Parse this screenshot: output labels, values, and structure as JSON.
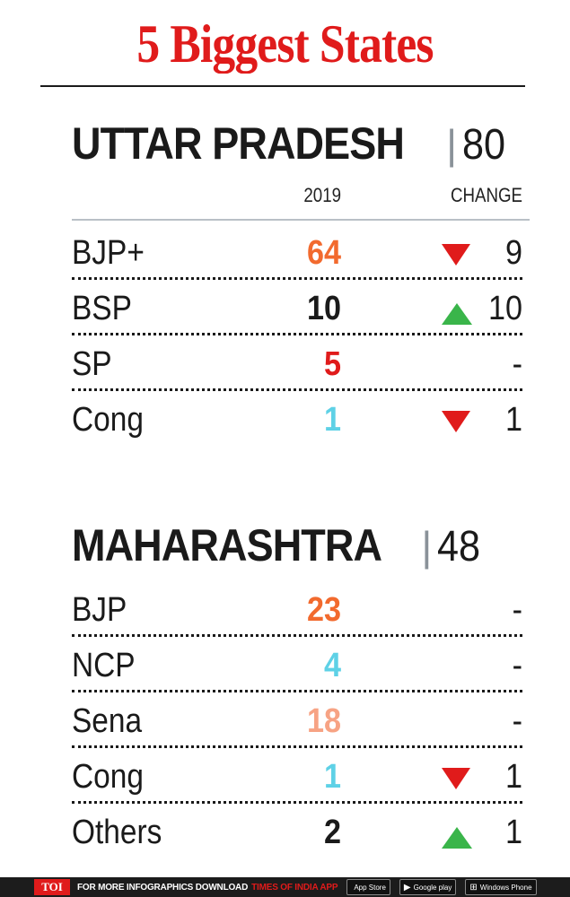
{
  "title": "5 Biggest States",
  "columns": {
    "year": "2019",
    "change": "CHANGE"
  },
  "colors": {
    "bjp": "#f26a2e",
    "sena": "#f7a384",
    "teal": "#5ed1e6",
    "red": "#e01b1b",
    "green": "#3ab54a",
    "dark": "#1a1a1a"
  },
  "chart_data": [
    {
      "type": "table",
      "title": "UTTAR PRADESH",
      "total_seats": "80",
      "columns": [
        "2019",
        "CHANGE"
      ],
      "rows": [
        {
          "party": "BJP+",
          "seats": "64",
          "seats_color": "#f26a2e",
          "change": "9",
          "direction": "down"
        },
        {
          "party": "BSP",
          "seats": "10",
          "seats_color": "#1a1a1a",
          "change": "10",
          "direction": "up"
        },
        {
          "party": "SP",
          "seats": "5",
          "seats_color": "#e01b1b",
          "change": "-",
          "direction": "none"
        },
        {
          "party": "Cong",
          "seats": "1",
          "seats_color": "#5ed1e6",
          "change": "1",
          "direction": "down"
        }
      ]
    },
    {
      "type": "table",
      "title": "MAHARASHTRA",
      "total_seats": "48",
      "rows": [
        {
          "party": "BJP",
          "seats": "23",
          "seats_color": "#f26a2e",
          "change": "-",
          "direction": "none"
        },
        {
          "party": "NCP",
          "seats": "4",
          "seats_color": "#5ed1e6",
          "change": "-",
          "direction": "none"
        },
        {
          "party": "Sena",
          "seats": "18",
          "seats_color": "#f7a384",
          "change": "-",
          "direction": "none"
        },
        {
          "party": "Cong",
          "seats": "1",
          "seats_color": "#5ed1e6",
          "change": "1",
          "direction": "down"
        },
        {
          "party": "Others",
          "seats": "2",
          "seats_color": "#1a1a1a",
          "change": "1",
          "direction": "up"
        }
      ]
    }
  ],
  "footer": {
    "logo": "TOI",
    "text": "FOR MORE  INFOGRAPHICS DOWNLOAD",
    "app": "TIMES OF INDIA  APP",
    "badges": [
      {
        "icon": "apple-icon",
        "glyph": "",
        "label": "App Store"
      },
      {
        "icon": "google-play-icon",
        "glyph": "▶",
        "label": "Google play"
      },
      {
        "icon": "windows-icon",
        "glyph": "⊞",
        "label": "Windows Phone"
      }
    ]
  }
}
